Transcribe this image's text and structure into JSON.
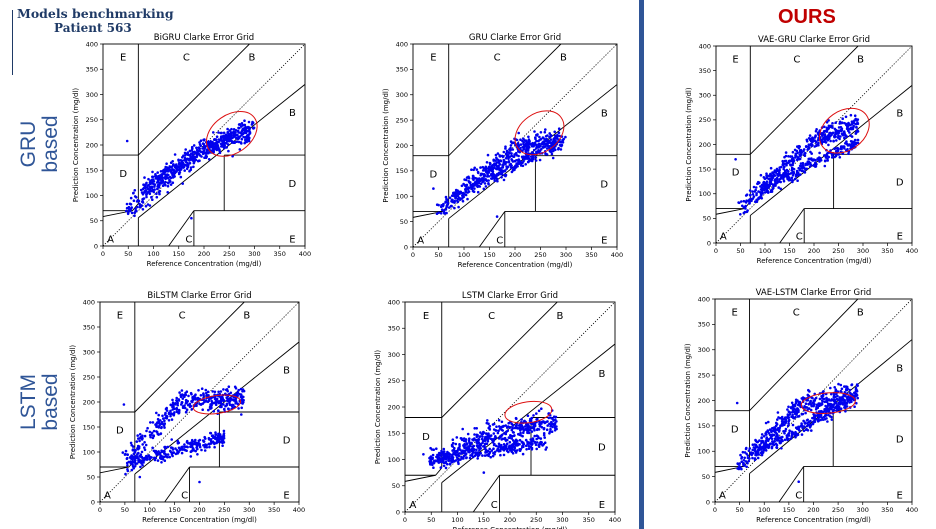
{
  "header": {
    "title": "Models benchmarking",
    "subtitle": "Patient 563"
  },
  "row_labels": {
    "gru": "GRU based",
    "lstm": "LSTM based"
  },
  "ours_label": "OURS",
  "colors": {
    "accent": "#2f5597",
    "ours": "#c00000",
    "points": "#0000ee",
    "ellipse": "#dd1111",
    "header": "#1f3a66"
  },
  "chart_data": [
    {
      "type": "scatter",
      "title": "BiGRU Clarke Error Grid",
      "xlabel": "Reference Concentration (mg/dl)",
      "ylabel": "Prediction Concentration (mg/dl)",
      "xlim": [
        0,
        400
      ],
      "ylim": [
        0,
        400
      ],
      "xticks": [
        0,
        50,
        100,
        150,
        200,
        250,
        300,
        350,
        400
      ],
      "yticks": [
        0,
        50,
        100,
        150,
        200,
        250,
        300,
        350,
        400
      ],
      "zone_labels": [
        "A",
        "B",
        "B",
        "C",
        "C",
        "D",
        "D",
        "E",
        "E"
      ],
      "pattern": {
        "lower_trend": [
          [
            50,
            73
          ],
          [
            200,
            195
          ],
          [
            280,
            225
          ]
        ],
        "upper_trend": [
          [
            80,
            120
          ],
          [
            300,
            240
          ]
        ],
        "outliers": [
          [
            48,
            208
          ],
          [
            175,
            55
          ],
          [
            135,
            165
          ]
        ]
      },
      "highlight": {
        "center": [
          255,
          222
        ],
        "rx": 55,
        "ry": 38,
        "angle_deg": 35
      }
    },
    {
      "type": "scatter",
      "title": "GRU Clarke Error Grid",
      "xlabel": "Reference Concentration (mg/dl)",
      "ylabel": "Prediction Concentration (mg/dl)",
      "xlim": [
        0,
        400
      ],
      "ylim": [
        0,
        400
      ],
      "xticks": [
        0,
        50,
        100,
        150,
        200,
        250,
        300,
        350,
        400
      ],
      "yticks": [
        0,
        50,
        100,
        150,
        200,
        250,
        300,
        350,
        400
      ],
      "zone_labels": [
        "A",
        "B",
        "B",
        "C",
        "C",
        "D",
        "D",
        "E",
        "E"
      ],
      "pattern": {
        "lower_trend": [
          [
            50,
            72
          ],
          [
            200,
            195
          ],
          [
            270,
            210
          ]
        ],
        "upper_trend": [
          [
            80,
            100
          ],
          [
            300,
            210
          ]
        ],
        "outliers": [
          [
            40,
            115
          ],
          [
            165,
            60
          ]
        ]
      },
      "highlight": {
        "center": [
          248,
          225
        ],
        "rx": 52,
        "ry": 38,
        "angle_deg": 35
      }
    },
    {
      "type": "scatter",
      "title": "VAE-GRU Clarke Error Grid",
      "xlabel": "Reference Concentration (mg/dl)",
      "ylabel": "Prediction Concentration (mg/dl)",
      "xlim": [
        0,
        400
      ],
      "ylim": [
        0,
        400
      ],
      "xticks": [
        0,
        50,
        100,
        150,
        200,
        250,
        300,
        350,
        400
      ],
      "yticks": [
        0,
        50,
        100,
        150,
        200,
        250,
        300,
        350,
        400
      ],
      "zone_labels": [
        "A",
        "B",
        "B",
        "C",
        "C",
        "D",
        "D",
        "E",
        "E"
      ],
      "pattern": {
        "lower_trend": [
          [
            50,
            73
          ],
          [
            200,
            210
          ],
          [
            290,
            240
          ]
        ],
        "upper_trend": [
          [
            90,
            110
          ],
          [
            290,
            205
          ]
        ],
        "outliers": [
          [
            40,
            170
          ],
          [
            60,
            70
          ]
        ]
      },
      "highlight": {
        "center": [
          262,
          228
        ],
        "rx": 55,
        "ry": 40,
        "angle_deg": 35
      }
    },
    {
      "type": "scatter",
      "title": "BiLSTM Clarke Error Grid",
      "xlabel": "Reference Concentration (mg/dl)",
      "ylabel": "Prediction Concentration (mg/dl)",
      "xlim": [
        0,
        400
      ],
      "ylim": [
        0,
        400
      ],
      "xticks": [
        0,
        50,
        100,
        150,
        200,
        250,
        300,
        350,
        400
      ],
      "yticks": [
        0,
        50,
        100,
        150,
        200,
        250,
        300,
        350,
        400
      ],
      "zone_labels": [
        "A",
        "B",
        "B",
        "C",
        "C",
        "D",
        "D",
        "E",
        "E"
      ],
      "pattern": {
        "lower_trend": [
          [
            50,
            80
          ],
          [
            160,
            200
          ],
          [
            290,
            205
          ]
        ],
        "upper_trend": [
          [
            60,
            80
          ],
          [
            250,
            130
          ]
        ],
        "outliers": [
          [
            48,
            195
          ],
          [
            80,
            50
          ],
          [
            200,
            40
          ]
        ]
      },
      "highlight": {
        "center": [
          235,
          195
        ],
        "rx": 48,
        "ry": 18,
        "angle_deg": 8
      }
    },
    {
      "type": "scatter",
      "title": "LSTM Clarke Error Grid",
      "xlabel": "Reference Concentration (mg/dl)",
      "ylabel": "Prediction Concentration (mg/dl)",
      "xlim": [
        0,
        400
      ],
      "ylim": [
        0,
        400
      ],
      "xticks": [
        0,
        50,
        100,
        150,
        200,
        250,
        300,
        350,
        400
      ],
      "yticks": [
        0,
        50,
        100,
        150,
        200,
        250,
        300,
        350,
        400
      ],
      "zone_labels": [
        "A",
        "B",
        "B",
        "C",
        "C",
        "D",
        "D",
        "E",
        "E"
      ],
      "pattern": {
        "lower_trend": [
          [
            60,
            100
          ],
          [
            170,
            150
          ],
          [
            270,
            170
          ]
        ],
        "upper_trend": [
          [
            60,
            100
          ],
          [
            270,
            135
          ]
        ],
        "outliers": [
          [
            35,
            110
          ],
          [
            150,
            75
          ]
        ]
      },
      "highlight": {
        "center": [
          235,
          190
        ],
        "rx": 45,
        "ry": 20,
        "angle_deg": 8
      }
    },
    {
      "type": "scatter",
      "title": "VAE-LSTM Clarke Error Grid",
      "xlabel": "Reference Concentration (mg/dl)",
      "ylabel": "Prediction Concentration (mg/dl)",
      "xlim": [
        0,
        400
      ],
      "ylim": [
        0,
        400
      ],
      "xticks": [
        0,
        50,
        100,
        150,
        200,
        250,
        300,
        350,
        400
      ],
      "yticks": [
        0,
        50,
        100,
        150,
        200,
        250,
        300,
        350,
        400
      ],
      "zone_labels": [
        "A",
        "B",
        "B",
        "C",
        "C",
        "D",
        "D",
        "E",
        "E"
      ],
      "pattern": {
        "lower_trend": [
          [
            50,
            75
          ],
          [
            180,
            195
          ],
          [
            300,
            215
          ]
        ],
        "upper_trend": [
          [
            80,
            95
          ],
          [
            290,
            210
          ]
        ],
        "outliers": [
          [
            45,
            195
          ],
          [
            170,
            40
          ]
        ]
      },
      "highlight": {
        "center": [
          230,
          195
        ],
        "rx": 55,
        "ry": 20,
        "angle_deg": 5
      }
    }
  ]
}
